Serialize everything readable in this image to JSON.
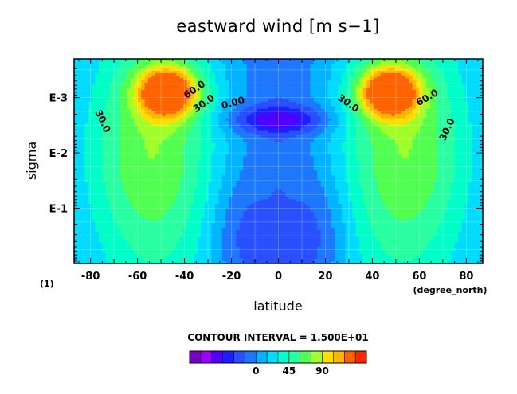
{
  "chart_data": {
    "type": "heatmap",
    "subtype": "filled-contour",
    "title": "eastward wind [m s−1]",
    "xlabel": "latitude",
    "x_units": "(degree_north)",
    "ylabel": "sigma",
    "y_scale": "log",
    "xlim": [
      -87,
      87
    ],
    "ylim": [
      "E-3.7",
      "E-0"
    ],
    "x_ticks": [
      "-80",
      "-60",
      "-40",
      "-20",
      "0",
      "20",
      "40",
      "60",
      "80"
    ],
    "y_ticks": [
      "E-3",
      "E-2",
      "E-1"
    ],
    "panel_label": "(1)",
    "contour_labels": [
      "30.0",
      "60.0",
      "30.0",
      "0.00",
      "30.0",
      "60.0",
      "30.0"
    ],
    "contour_interval_text": "CONTOUR INTERVAL = 1.500E+01",
    "colorbar": {
      "levels": [
        -75,
        -60,
        -45,
        -30,
        -15,
        0,
        15,
        30,
        45,
        60,
        75,
        90,
        105,
        120
      ],
      "tick_labels": [
        "0",
        "45",
        "90"
      ],
      "colors": [
        "#7a00c8",
        "#a000ff",
        "#5000ff",
        "#1e1eff",
        "#2850ff",
        "#1e78ff",
        "#00b4ff",
        "#00dcff",
        "#00ffc8",
        "#28ffa0",
        "#50ff50",
        "#a0ff28",
        "#ffe000",
        "#ffb400",
        "#ff6400",
        "#ff2800"
      ]
    },
    "features": [
      {
        "label": "westerly jet core (south)",
        "lat": -47,
        "log10_sigma": -3.1,
        "value": 120
      },
      {
        "label": "westerly jet core (north)",
        "lat": 47,
        "log10_sigma": -3.1,
        "value": 120
      },
      {
        "label": "equatorial upper easterly core",
        "lat": 0,
        "log10_sigma": -2.6,
        "value": -45
      },
      {
        "label": "equatorial lower easterly",
        "lat": 0,
        "log10_sigma": -0.6,
        "value": -15
      }
    ],
    "grid": true
  }
}
